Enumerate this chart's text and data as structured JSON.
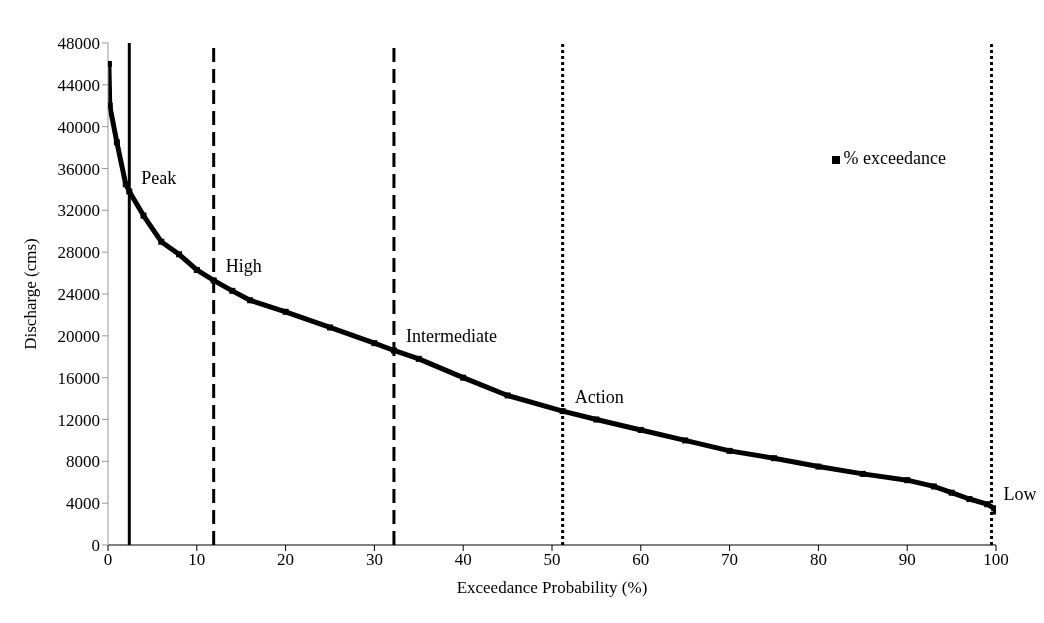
{
  "chart_data": {
    "type": "line",
    "xlabel": "Exceedance Probability (%)",
    "ylabel": "Discharge (cms)",
    "series": [
      {
        "name": "% exceedance",
        "color": "#000000",
        "x": [
          0.1,
          0.2,
          1,
          2,
          2.4,
          4,
          6,
          8,
          10,
          11.9,
          14,
          16,
          20,
          25,
          30,
          32.2,
          35,
          40,
          45,
          51.2,
          55,
          60,
          65,
          70,
          75,
          80,
          85,
          90,
          93,
          95,
          97,
          99,
          99.8,
          100
        ],
        "values": [
          46000,
          42000,
          38500,
          34500,
          33800,
          31500,
          29000,
          27800,
          26300,
          25300,
          24300,
          23400,
          22300,
          20800,
          19300,
          18600,
          17800,
          16000,
          14300,
          12800,
          12000,
          11000,
          10000,
          9000,
          8300,
          7500,
          6800,
          6200,
          5600,
          5000,
          4400,
          3900,
          3500,
          3200
        ]
      }
    ],
    "xlim": [
      0,
      100
    ],
    "xticks": [
      0,
      10,
      20,
      30,
      40,
      50,
      60,
      70,
      80,
      90,
      100
    ],
    "ylim": [
      0,
      48000
    ],
    "yticks": [
      0,
      4000,
      8000,
      12000,
      16000,
      20000,
      24000,
      28000,
      32000,
      36000,
      40000,
      44000,
      48000
    ],
    "grid": false,
    "legend": "top right",
    "marker": "square",
    "line_style": "solid",
    "ref_lines": [
      {
        "axis": "x",
        "value": 2.4,
        "label": "Peak",
        "color": "#000000",
        "line_style": "solid"
      },
      {
        "axis": "x",
        "value": 11.9,
        "label": "High",
        "color": "#000000",
        "line_style": "dashed"
      },
      {
        "axis": "x",
        "value": 32.2,
        "label": "Intermediate",
        "color": "#000000",
        "line_style": "dashed"
      },
      {
        "axis": "x",
        "value": 51.2,
        "label": "Action",
        "color": "#000000",
        "line_style": "dotted"
      },
      {
        "axis": "x",
        "value": 99.5,
        "label": "Low",
        "color": "#000000",
        "line_style": "dotted"
      }
    ]
  }
}
